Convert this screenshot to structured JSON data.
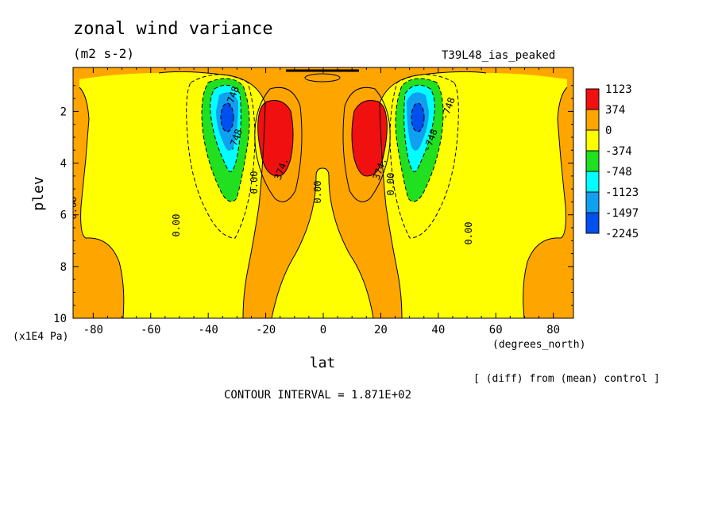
{
  "chart_data": {
    "type": "contour",
    "title": "zonal wind variance",
    "units": "(m2 s-2)",
    "experiment": "T39L48_ias_peaked",
    "xlabel": "lat",
    "ylabel": "plev",
    "x_unit": "(degrees_north)",
    "y_unit": "(x1E4 Pa)",
    "xlim": [
      -87,
      87
    ],
    "ylim": [
      10,
      0.3
    ],
    "x_ticks": [
      "-80",
      "-60",
      "-40",
      "-20",
      "0",
      "20",
      "40",
      "60",
      "80"
    ],
    "y_ticks": [
      "2",
      "4",
      "6",
      "8",
      "10"
    ],
    "diff_note": "[ (diff) from (mean) control ]",
    "contour_interval": "CONTOUR INTERVAL = 1.871E+02",
    "colorbar": [
      {
        "label": "1123",
        "color": "#f01010"
      },
      {
        "label": "374",
        "color": "#ffa500"
      },
      {
        "label": "0",
        "color": "#ffff00"
      },
      {
        "label": "-374",
        "color": "#20e020"
      },
      {
        "label": "-748",
        "color": "#00ffff"
      },
      {
        "label": "-1123",
        "color": "#10a0f0"
      },
      {
        "label": "-1497",
        "color": "#0050f0"
      },
      {
        "label": "-2245",
        "color": "#0050f0"
      }
    ],
    "contour_labels": [
      "0.00",
      "0.00",
      "0.00",
      "0.00",
      "0.00",
      "0.00",
      "374.",
      "374.",
      "-748",
      "-748",
      "-748",
      "-748"
    ],
    "features": [
      {
        "name": "southern negative core",
        "lat": -35,
        "plev": 2.0,
        "value": -2245
      },
      {
        "name": "southern positive core",
        "lat": -18,
        "plev": 2.8,
        "value": 1123
      },
      {
        "name": "northern positive core",
        "lat": 18,
        "plev": 2.8,
        "value": 1123
      },
      {
        "name": "northern negative core",
        "lat": 35,
        "plev": 2.0,
        "value": -2245
      }
    ]
  }
}
